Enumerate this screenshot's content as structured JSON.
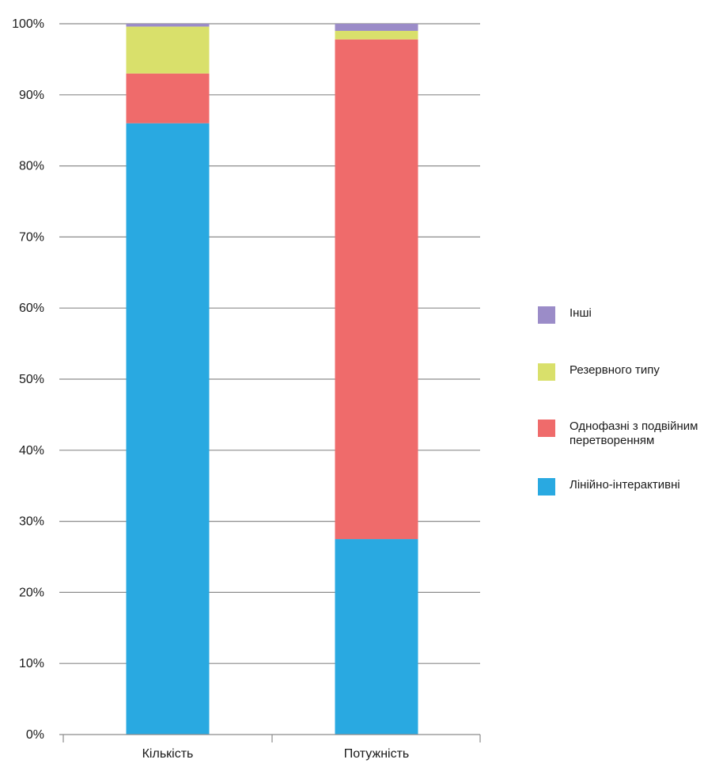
{
  "chart_data": {
    "type": "bar",
    "stacked": true,
    "categories": [
      "Кількість",
      "Потужність"
    ],
    "ylim": [
      0,
      100
    ],
    "yticks": [
      "0%",
      "10%",
      "20%",
      "30%",
      "40%",
      "50%",
      "60%",
      "70%",
      "80%",
      "90%",
      "100%"
    ],
    "grid": true,
    "legend_position": "right",
    "series": [
      {
        "name": "Лінійно-інтерактивні",
        "color": "#29a9e1",
        "values": [
          86,
          27.5
        ]
      },
      {
        "name": "Однофазні з подвійним перетворенням",
        "color": "#ef6b6b",
        "values": [
          7,
          70.3
        ]
      },
      {
        "name": "Резервного типу",
        "color": "#d9e06b",
        "values": [
          6.6,
          1.2
        ]
      },
      {
        "name": "Інші",
        "color": "#9b8cc8",
        "values": [
          0.4,
          1.0
        ]
      }
    ],
    "legend_order": [
      3,
      2,
      1,
      0
    ]
  }
}
